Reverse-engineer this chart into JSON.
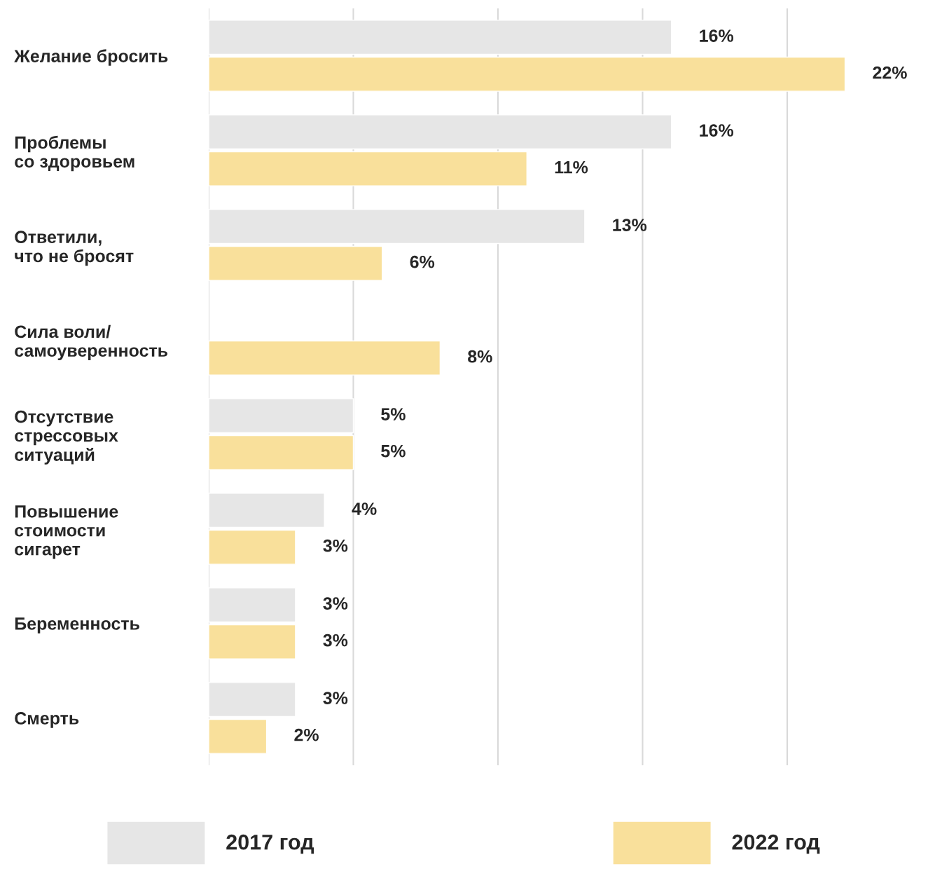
{
  "chart_data": {
    "type": "bar",
    "orientation": "horizontal",
    "categories": [
      "Желание бросить",
      "Проблемы\nсо здоровьем",
      "Ответили,\nчто не бросят",
      "Сила воли/\nсамоуверенность",
      "Отсутствие\nстрессовых\nситуаций",
      "Повышение\nстоимости\nсигарет",
      "Беременность",
      "Смерть"
    ],
    "series": [
      {
        "name": "2017 год",
        "color": "#e6e6e6",
        "values": [
          16,
          16,
          13,
          null,
          5,
          4,
          3,
          3
        ],
        "value_labels": [
          "16%",
          "16%",
          "13%",
          null,
          "5%",
          "4%",
          "3%",
          "3%"
        ]
      },
      {
        "name": "2022 год",
        "color": "#f9e09b",
        "values": [
          22,
          11,
          6,
          8,
          5,
          3,
          3,
          2
        ],
        "value_labels": [
          "22%",
          "11%",
          "6%",
          "8%",
          "5%",
          "3%",
          "3%",
          "2%"
        ]
      }
    ],
    "tick_labels": "y",
    "grid": "x",
    "legend": "bottom"
  }
}
